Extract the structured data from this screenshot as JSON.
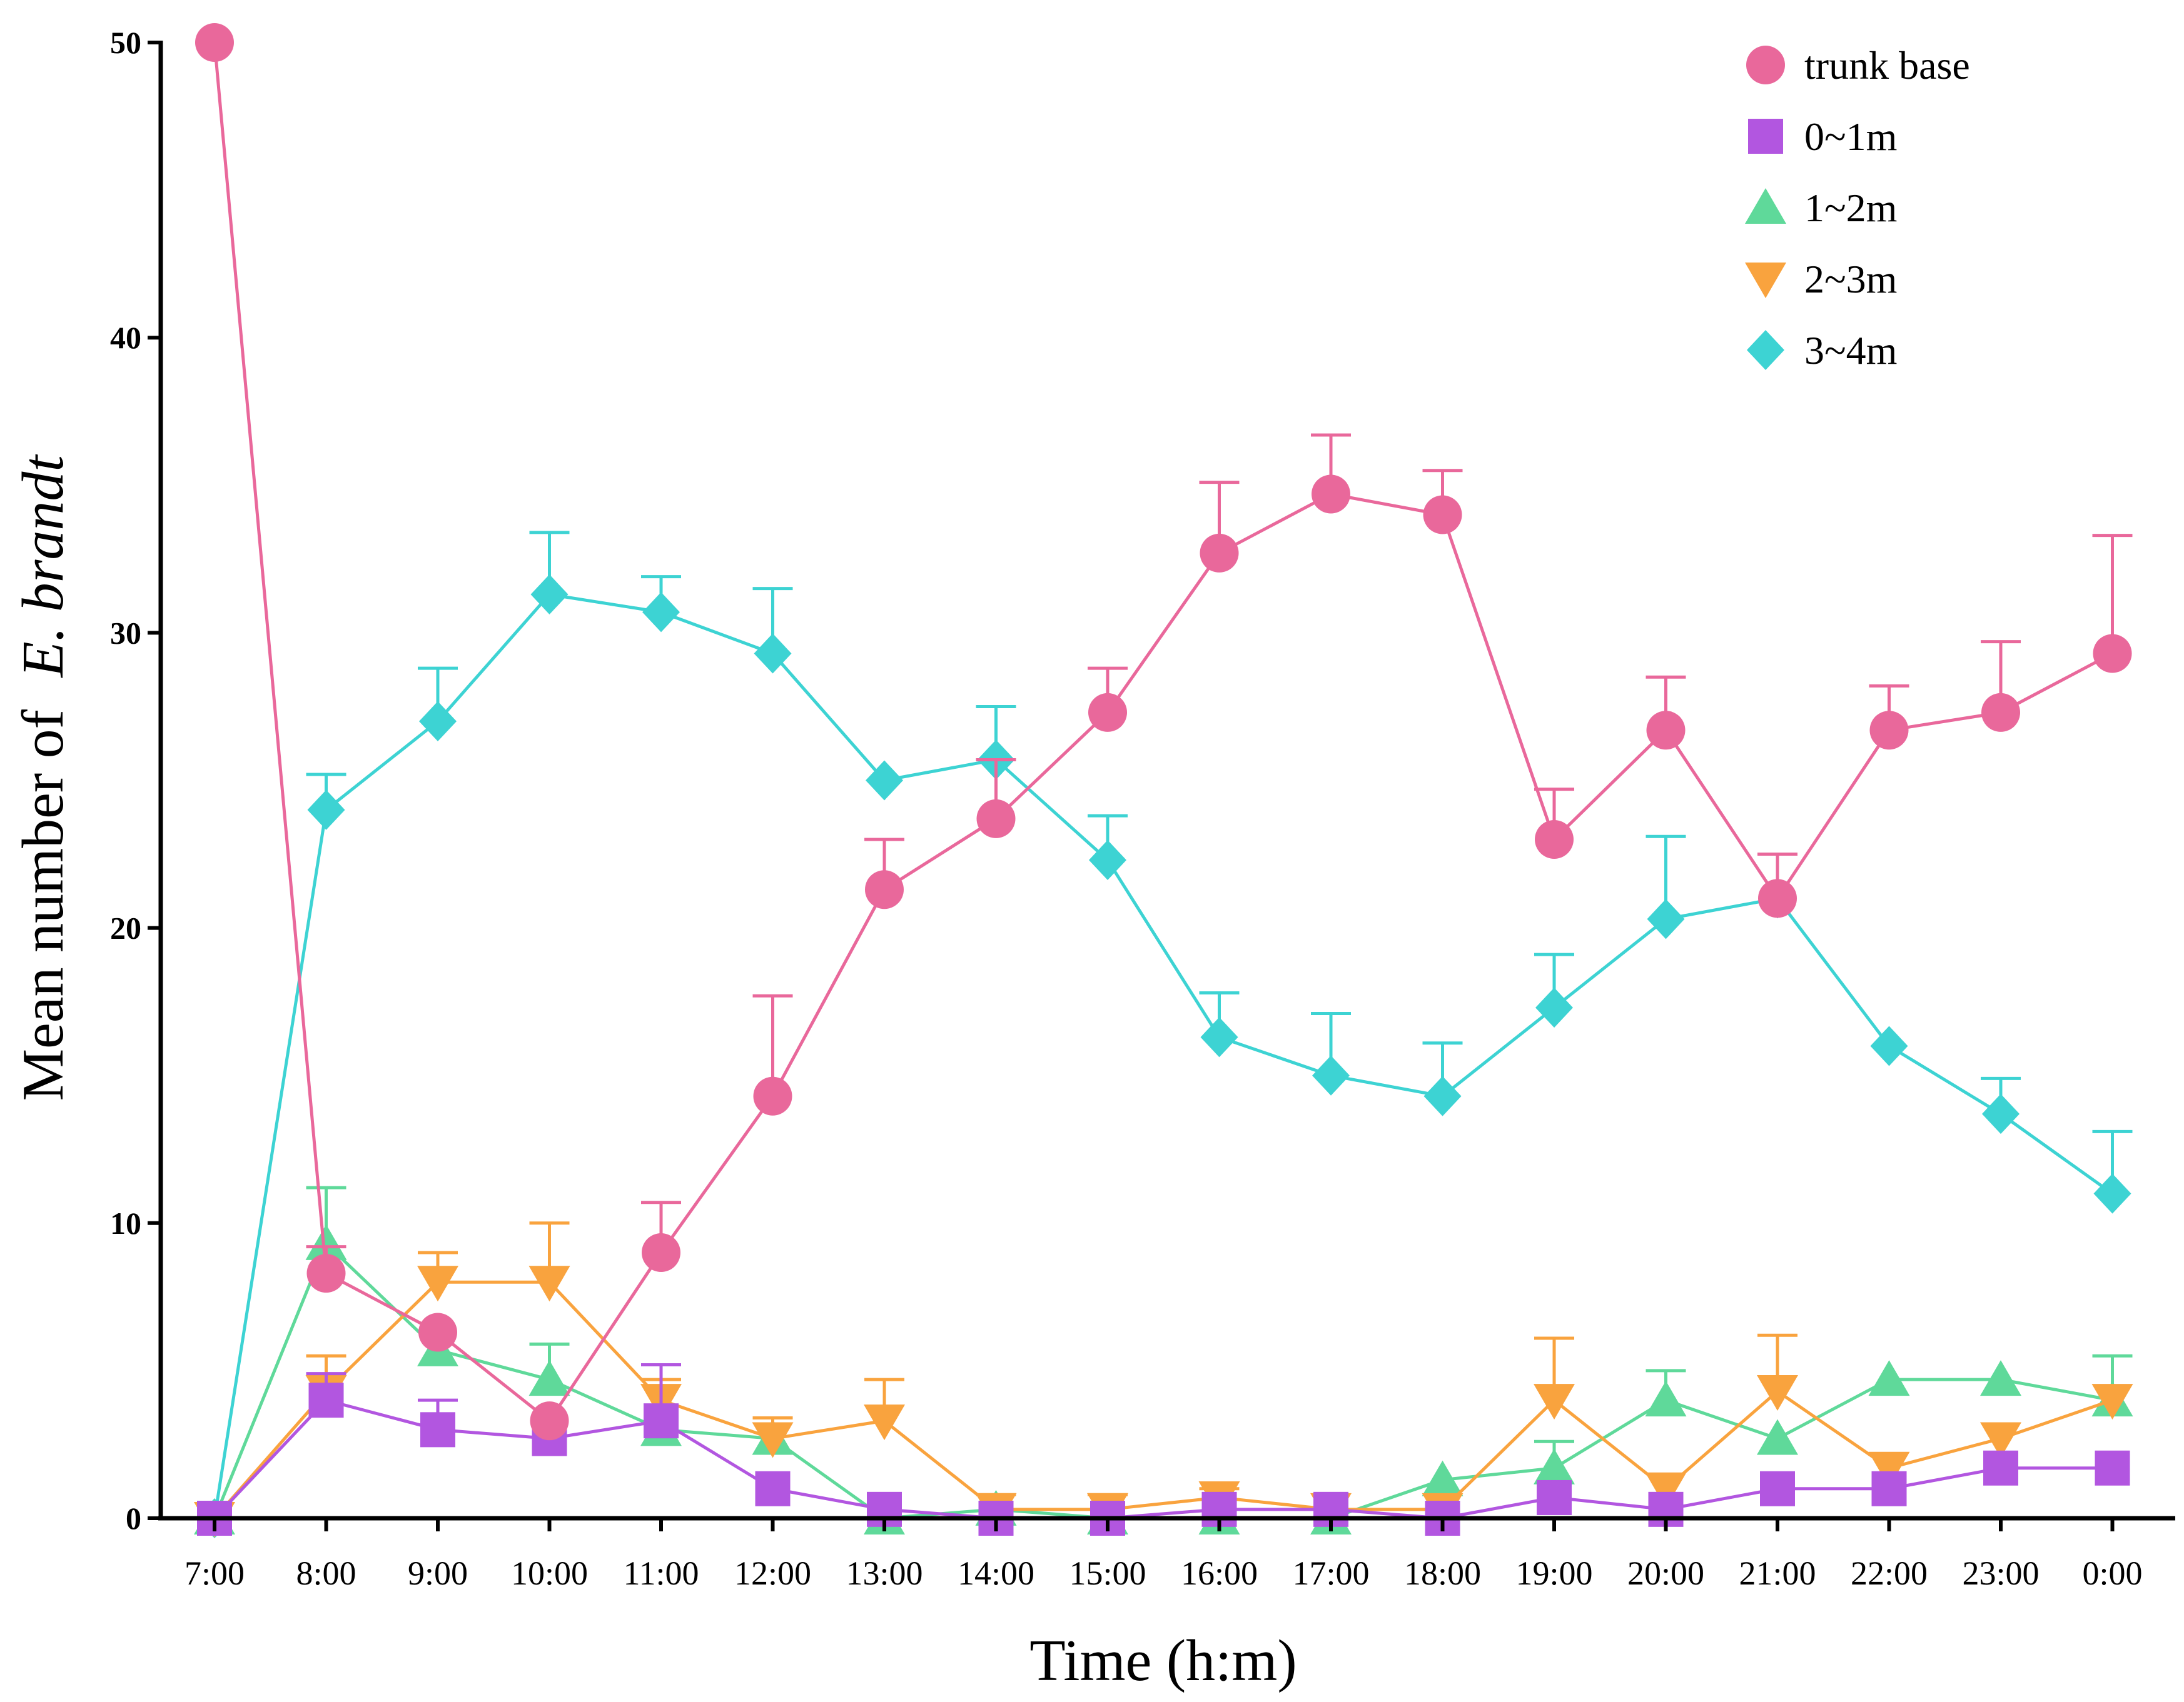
{
  "chart_data": {
    "type": "line",
    "title": "",
    "xlabel": "Time (h:m)",
    "ylabel": {
      "prefix": "Mean number of",
      "italic": "E. brandt"
    },
    "ylim": [
      0,
      50
    ],
    "yticks": [
      "0",
      "10",
      "20",
      "30",
      "40",
      "50"
    ],
    "ytick_values": [
      0,
      10,
      20,
      30,
      40,
      50
    ],
    "categories": [
      "7:00",
      "8:00",
      "9:00",
      "10:00",
      "11:00",
      "12:00",
      "13:00",
      "14:00",
      "15:00",
      "16:00",
      "17:00",
      "18:00",
      "19:00",
      "20:00",
      "21:00",
      "22:00",
      "23:00",
      "0:00"
    ],
    "grid": false,
    "legend_position": "top-right",
    "series": [
      {
        "name": "trunk base",
        "marker": "circle",
        "color": "#e9689b",
        "values": [
          50,
          8.3,
          6.3,
          3.3,
          9,
          14.3,
          21.3,
          23.7,
          27.3,
          32.7,
          34.7,
          34,
          23,
          26.7,
          21,
          26.7,
          27.3,
          29.3
        ],
        "errors": [
          0,
          0.9,
          0,
          0,
          1.7,
          3.4,
          1.7,
          2.0,
          1.5,
          2.4,
          2.0,
          1.5,
          1.7,
          1.8,
          1.5,
          1.5,
          2.4,
          4.0
        ]
      },
      {
        "name": "0~1m",
        "marker": "square",
        "color": "#b256e0",
        "values": [
          0,
          4,
          3,
          2.7,
          3.3,
          1,
          0.3,
          0,
          0,
          0.3,
          0.3,
          0,
          0.7,
          0.3,
          1,
          1,
          1.7,
          1.7
        ],
        "errors": [
          0,
          0.9,
          1.0,
          0,
          1.9,
          0,
          0,
          0,
          0,
          0,
          0,
          0,
          0,
          0,
          0,
          0,
          0,
          0
        ]
      },
      {
        "name": "1~2m",
        "marker": "triangle-up",
        "color": "#5fd99a",
        "values": [
          0,
          9.3,
          5.7,
          4.7,
          3,
          2.7,
          0,
          0.3,
          0,
          0,
          0,
          1.3,
          1.7,
          4,
          2.7,
          4.7,
          4.7,
          4
        ],
        "errors": [
          0,
          1.9,
          0,
          1.2,
          0,
          0,
          0,
          0,
          0,
          0,
          0,
          0,
          0.9,
          1.0,
          0,
          0,
          0,
          1.5
        ]
      },
      {
        "name": "2~3m",
        "marker": "triangle-down",
        "color": "#f9a33e",
        "values": [
          0,
          4.3,
          8,
          8,
          4,
          2.7,
          3.3,
          0.3,
          0.3,
          0.7,
          0.3,
          0.3,
          4,
          1,
          4.3,
          1.7,
          2.7,
          4
        ],
        "errors": [
          0,
          1.2,
          1.0,
          2.0,
          0.7,
          0.7,
          1.4,
          0.5,
          0.5,
          0.3,
          0,
          0,
          2.1,
          0,
          1.9,
          0,
          0,
          0
        ]
      },
      {
        "name": "3~4m",
        "marker": "diamond",
        "color": "#3dd3d3",
        "values": [
          0,
          24,
          27,
          31.3,
          30.7,
          29.3,
          25,
          25.7,
          22.3,
          16.3,
          15,
          14.3,
          17.3,
          20.3,
          21,
          16,
          13.7,
          11
        ],
        "errors": [
          0,
          1.2,
          1.8,
          2.1,
          1.2,
          2.2,
          0,
          1.8,
          1.5,
          1.5,
          2.1,
          1.8,
          1.8,
          2.8,
          0,
          0,
          1.2,
          2.1
        ]
      }
    ]
  }
}
